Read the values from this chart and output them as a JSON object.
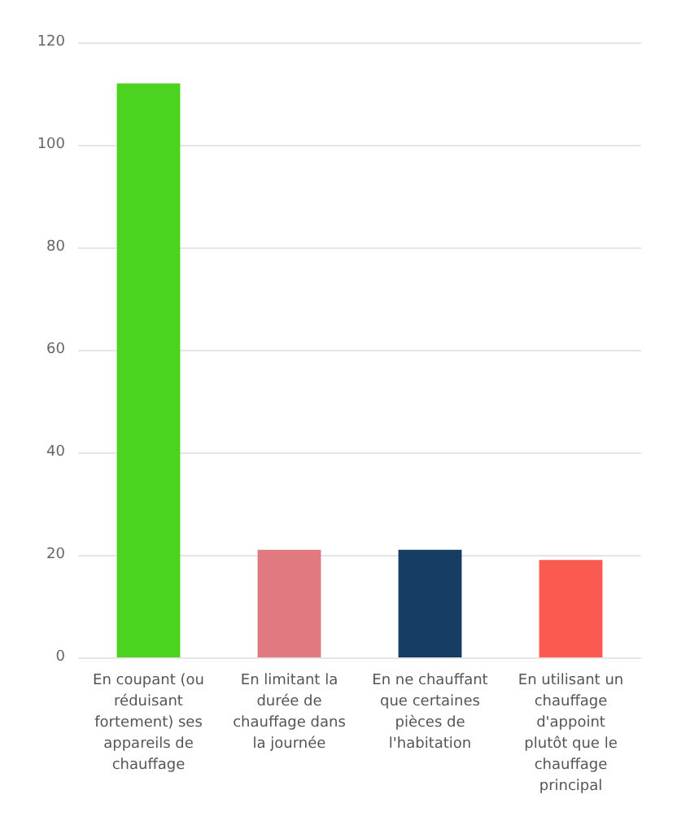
{
  "chart_data": {
    "type": "bar",
    "categories": [
      "En coupant (ou réduisant fortement) ses appareils de chauffage",
      "En limitant la durée de chauffage dans la journée",
      "En ne chauffant que certaines pièces de l'habitation",
      "En utilisant un chauffage d'appoint plutôt que le chauffage principal"
    ],
    "values": [
      112,
      21,
      21,
      19
    ],
    "colors": [
      "#4cd31f",
      "#e07a80",
      "#163d64",
      "#fa5a50"
    ],
    "ylim": [
      0,
      120
    ],
    "yticks": [
      0,
      20,
      40,
      60,
      80,
      100,
      120
    ],
    "grid": "y"
  }
}
